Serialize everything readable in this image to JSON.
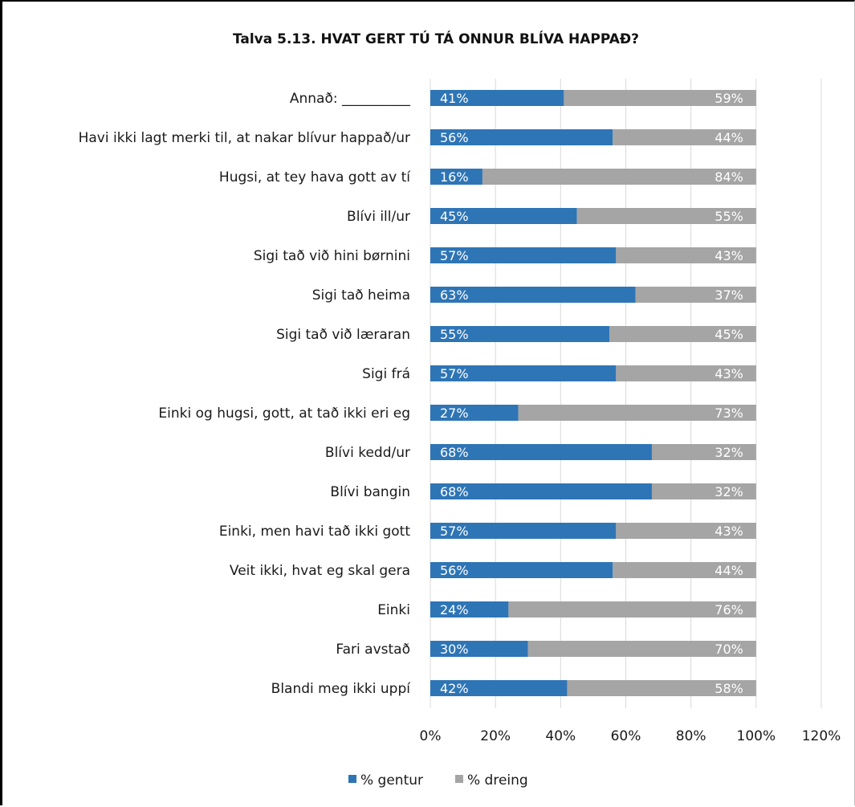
{
  "chart_data": {
    "type": "bar",
    "orientation": "horizontal",
    "stacked": true,
    "title": "Talva 5.13. HVAT GERT TÚ TÁ ONNUR BLÍVA HAPPAÐ?",
    "categories": [
      "Annað: __________",
      "Havi ikki lagt merki til, at nakar blívur happað/ur",
      "Hugsi, at tey hava gott av tí",
      "Blívi ill/ur",
      "Sigi tað við hini børnini",
      "Sigi tað heima",
      "Sigi tað við læraran",
      "Sigi frá",
      "Einki og hugsi, gott, at tað ikki eri eg",
      "Blívi kedd/ur",
      "Blívi bangin",
      "Einki, men havi tað ikki gott",
      "Veit ikki, hvat eg skal gera",
      "Einki",
      "Fari avstað",
      "Blandi meg ikki uppí"
    ],
    "series": [
      {
        "name": "% gentur",
        "color": "#2E75B6",
        "values": [
          41,
          56,
          16,
          45,
          57,
          63,
          55,
          57,
          27,
          68,
          68,
          57,
          56,
          24,
          30,
          42
        ],
        "labels": [
          "41%",
          "56%",
          "16%",
          "45%",
          "57%",
          "63%",
          "55%",
          "57%",
          "27%",
          "68%",
          "68%",
          "57%",
          "56%",
          "24%",
          "30%",
          "42%"
        ]
      },
      {
        "name": "% dreing",
        "color": "#A5A5A5",
        "values": [
          59,
          44,
          84,
          55,
          43,
          37,
          45,
          43,
          73,
          32,
          32,
          43,
          44,
          76,
          70,
          58
        ],
        "labels": [
          "59%",
          "44%",
          "84%",
          "55%",
          "43%",
          "37%",
          "45%",
          "43%",
          "73%",
          "32%",
          "32%",
          "43%",
          "44%",
          "76%",
          "70%",
          "58%"
        ]
      }
    ],
    "xlim": [
      0,
      120
    ],
    "xticks": [
      0,
      20,
      40,
      60,
      80,
      100,
      120
    ],
    "xtick_labels": [
      "0%",
      "20%",
      "40%",
      "60%",
      "80%",
      "100%",
      "120%"
    ],
    "grid": "vertical",
    "legend_position": "bottom"
  }
}
